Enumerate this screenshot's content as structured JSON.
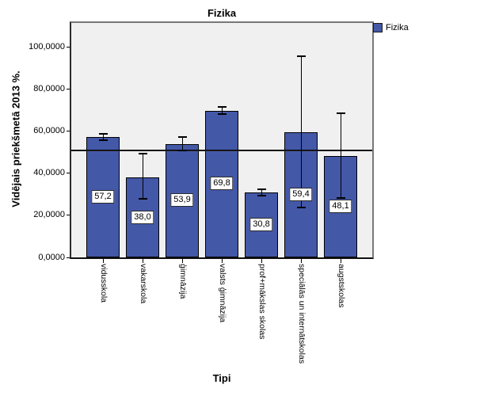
{
  "chart_title": "Fizika",
  "legend": {
    "label": "Fizika"
  },
  "axes": {
    "y_label": "Vidējais priekšmetā 2013 %.",
    "x_label": "Tipi"
  },
  "colors": {
    "bar_fill": "#4458a8",
    "bar_border": "#000000",
    "plot_background": "#f0f0f0",
    "frame_gray": "#787878",
    "reference_line": "#000000"
  },
  "chart_data": {
    "type": "bar",
    "title": "Fizika",
    "xlabel": "Tipi",
    "ylabel": "Vidējais priekšmetā 2013 %.",
    "ylim": [
      0,
      111.5
    ],
    "grid": false,
    "legend_position": "top-right-outside",
    "categories": [
      "vidusskola",
      "vakarskola",
      "ģimnāzija",
      "valsts ģimnāzija",
      "prof+mākslas skolas",
      "speciālās un internātskolas",
      "augstskolas"
    ],
    "series": [
      {
        "name": "Fizika",
        "values": [
          57.2,
          38.0,
          53.9,
          69.8,
          30.8,
          59.4,
          48.1
        ]
      }
    ],
    "value_labels": [
      "57,2",
      "38,0",
      "53,9",
      "69,8",
      "30,8",
      "59,4",
      "48,1"
    ],
    "error_bars": [
      {
        "lo": 55.6,
        "hi": 58.9
      },
      {
        "lo": 27.8,
        "hi": 49.5
      },
      {
        "lo": 50.7,
        "hi": 57.3
      },
      {
        "lo": 68.2,
        "hi": 71.6
      },
      {
        "lo": 29.3,
        "hi": 32.4
      },
      {
        "lo": 23.7,
        "hi": 95.8
      },
      {
        "lo": 28.3,
        "hi": 68.5
      }
    ],
    "reference_line": 51,
    "y_ticks": [
      {
        "value": 0,
        "label": "0,0000"
      },
      {
        "value": 20,
        "label": "20,0000"
      },
      {
        "value": 40,
        "label": "40,0000"
      },
      {
        "value": 60,
        "label": "60,0000"
      },
      {
        "value": 80,
        "label": "80,0000"
      },
      {
        "value": 100,
        "label": "100,0000"
      }
    ]
  }
}
